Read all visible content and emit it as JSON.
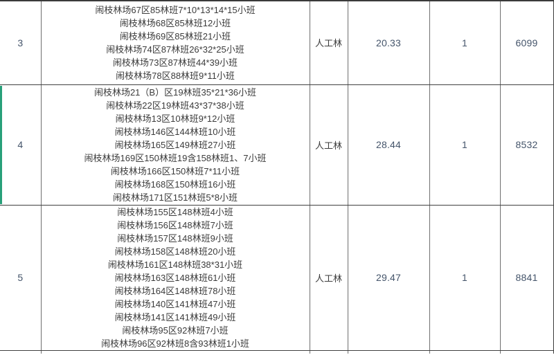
{
  "colors": {
    "accent_green": "#28A07A",
    "text_chinese": "#3B3B3B",
    "text_number": "#44546A",
    "grid_vertical": "#6E6E6E",
    "grid_horizontal": "#3F3F3F"
  },
  "table": {
    "rows": [
      {
        "no": "3",
        "locations": [
          "闹枝林场67区85林班7*10*13*14*15小班",
          "闹枝林场68区85林班12小班",
          "闹枝林场69区85林班21小班",
          "闹枝林场74区87林班26*32*25小班",
          "闹枝林场73区87林班44*39小班",
          "闹枝林场78区88林班9*11小班"
        ],
        "forest_type": "人工林",
        "area": "20.33",
        "count": "1",
        "amount": "6099",
        "highlighted": false
      },
      {
        "no": "4",
        "locations": [
          "闹枝林场21（B）区19林班35*21*36小班",
          "闹枝林场22区19林班43*37*38小班",
          "闹枝林场13区10林班9*12小班",
          "闹枝林场146区144林班10小班",
          "闹枝林场165区149林班27小班",
          "闹枝林场169区150林班19含158林班1、7小班",
          "闹枝林场166区150林班7*11小班",
          "闹枝林场168区150林班16小班",
          "闹枝林场171区151林班5*8小班"
        ],
        "forest_type": "人工林",
        "area": "28.44",
        "count": "1",
        "amount": "8532",
        "highlighted": true
      },
      {
        "no": "5",
        "locations": [
          "闹枝林场155区148林班4小班",
          "闹枝林场156区148林班7小班",
          "闹枝林场157区148林班9小班",
          "闹枝林场158区148林班20小班",
          "闹枝林场161区148林班38*31小班",
          "闹枝林场163区148林班61小班",
          "闹枝林场164区148林班78小班",
          "闹枝林场140区141林班47小班",
          "闹枝林场141区141林班49小班",
          "闹枝林场95区92林班7小班",
          "闹枝林场96区92林班8含93林班1小班"
        ],
        "forest_type": "人工林",
        "area": "29.47",
        "count": "1",
        "amount": "8841",
        "highlighted": false
      }
    ]
  }
}
